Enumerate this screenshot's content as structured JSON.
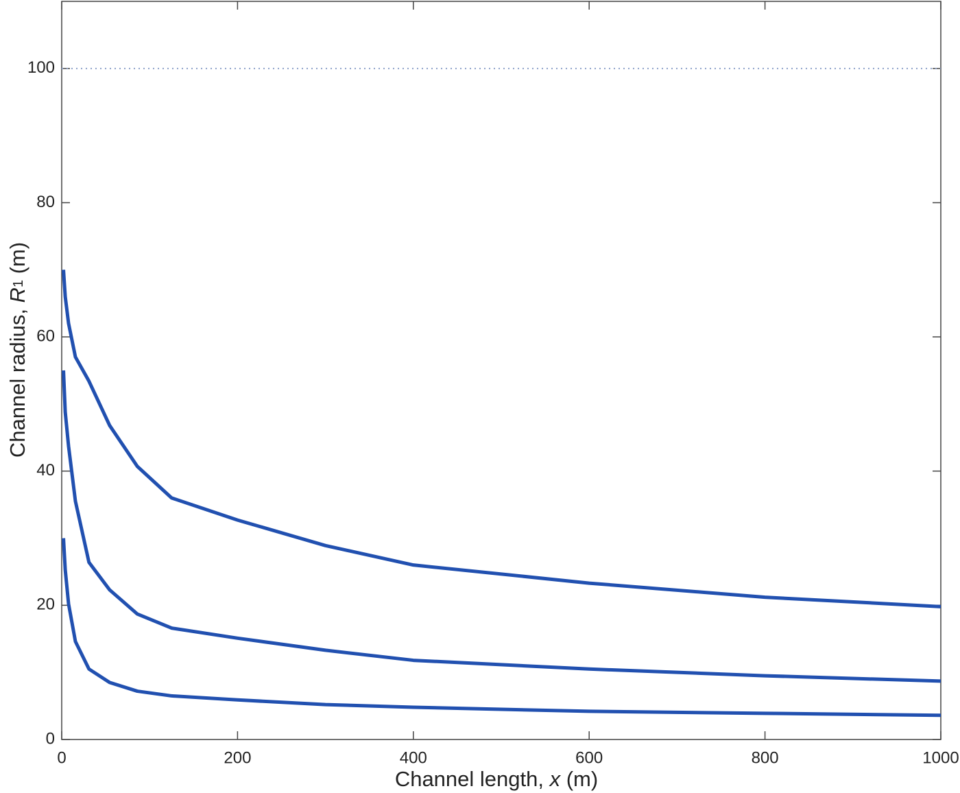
{
  "chart_data": {
    "type": "line",
    "xlabel": [
      "Channel length, ",
      "x",
      " (m)"
    ],
    "ylabel": [
      "Channel radius, ",
      "R",
      "1",
      " (m)"
    ],
    "xlim": [
      0,
      1000
    ],
    "ylim": [
      0,
      110
    ],
    "xticks": [
      0,
      200,
      400,
      600,
      800,
      1000
    ],
    "yticks": [
      0,
      20,
      40,
      60,
      80,
      100
    ],
    "series": [
      {
        "color": "#2150b0",
        "x": [
          2,
          4,
          7.8,
          15.6,
          31,
          54.5,
          86,
          125,
          200,
          300,
          400,
          600,
          800,
          1000
        ],
        "values": [
          70,
          66,
          62,
          57,
          53.4,
          46.8,
          40.7,
          36,
          32.7,
          28.9,
          26,
          23.3,
          21.2,
          19.8
        ]
      },
      {
        "color": "#2150b0",
        "x": [
          2,
          4,
          7.8,
          15.6,
          31,
          54.5,
          86,
          125,
          200,
          300,
          400,
          600,
          800,
          1000
        ],
        "values": [
          55,
          48.8,
          43.7,
          35.5,
          26.4,
          22.3,
          18.7,
          16.6,
          15.1,
          13.3,
          11.8,
          10.5,
          9.5,
          8.7
        ]
      },
      {
        "color": "#2150b0",
        "x": [
          2,
          4,
          7.8,
          15.6,
          31,
          54.5,
          86,
          125,
          200,
          300,
          400,
          600,
          800,
          1000
        ],
        "values": [
          30,
          25.3,
          20.2,
          14.6,
          10.5,
          8.5,
          7.2,
          6.5,
          5.9,
          5.2,
          4.8,
          4.2,
          3.9,
          3.6
        ]
      },
      {
        "color": "#8a9fc8",
        "dash": "dotted",
        "x": [
          0,
          1000
        ],
        "values": [
          100,
          100
        ]
      }
    ]
  }
}
